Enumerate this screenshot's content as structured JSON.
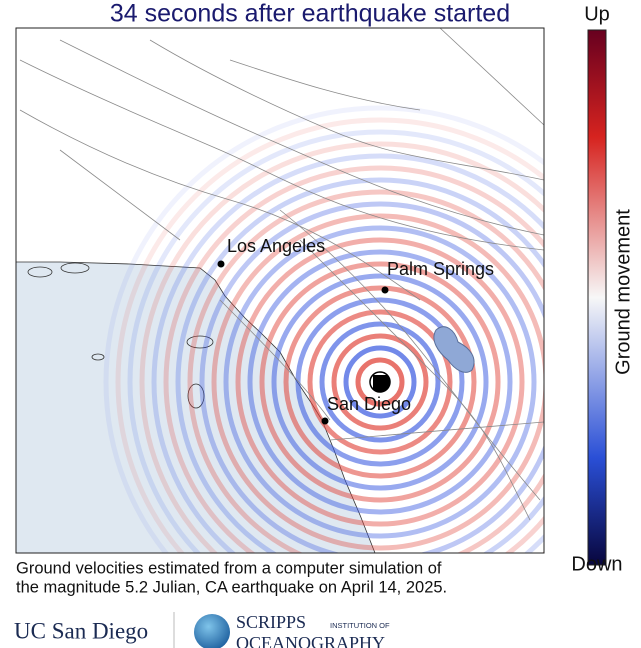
{
  "title": "34 seconds after earthquake started",
  "colorbar": {
    "top_label": "Up",
    "bottom_label": "Down",
    "axis_label": "Ground movement"
  },
  "cities": [
    {
      "label": "Los Angeles"
    },
    {
      "label": "Palm Springs"
    },
    {
      "label": "San Diego"
    }
  ],
  "caption": {
    "lines": [
      "Ground velocities estimated from a computer simulation of",
      "the magnitude 5.2 Julian, CA earthquake on April 14, 2025."
    ]
  },
  "logos": {
    "ucsd": "UC San Diego",
    "scripps": "SCRIPPS",
    "scripps_sub": "INSTITUTION OF",
    "scripps_name": "OCEANOGRAPHY"
  }
}
